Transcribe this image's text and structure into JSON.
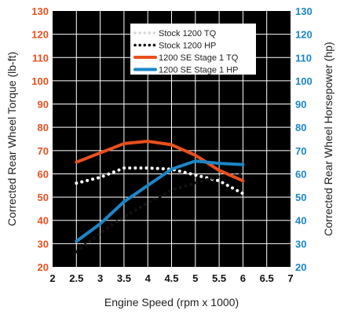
{
  "chart_data": {
    "type": "line",
    "xlabel": "Engine Speed (rpm x 1000)",
    "ylabel_left": "Corrected Rear Wheel Torque (lb-ft)",
    "ylabel_right": "Corrected Rear Wheel Horsepower (hp)",
    "xlim": [
      2,
      7
    ],
    "ylim": [
      20,
      130
    ],
    "x_ticks": [
      "2",
      "2.5",
      "3",
      "3.5",
      "4",
      "4.5",
      "5",
      "5.5",
      "6",
      "6.5",
      "7"
    ],
    "y_ticks": [
      "20",
      "30",
      "40",
      "50",
      "60",
      "70",
      "80",
      "90",
      "100",
      "110",
      "120",
      "130"
    ],
    "grid": true,
    "legend_position": "top-right",
    "colors": {
      "left_axis_ticks": "#e8501c",
      "right_axis_ticks": "#1b86c8"
    },
    "series": [
      {
        "name": "Stock 1200 TQ",
        "color": "#ffffff",
        "style": "dotted",
        "axis": "left",
        "x": [
          2.5,
          3,
          3.5,
          4,
          4.5,
          5,
          5.5,
          6
        ],
        "y": [
          56,
          58.5,
          62.5,
          62.5,
          62,
          59.5,
          57,
          51.5
        ]
      },
      {
        "name": "Stock 1200 HP",
        "color": "#111111",
        "style": "dotted",
        "axis": "right",
        "x": [
          2.5,
          3,
          3.5,
          4,
          4.5,
          5,
          5.5,
          6
        ],
        "y": [
          26.5,
          34.5,
          41.5,
          47.5,
          53,
          56,
          59,
          59.5
        ]
      },
      {
        "name": "1200 SE Stage 1 TQ",
        "color": "#e8501c",
        "style": "solid",
        "axis": "left",
        "x": [
          2.5,
          3,
          3.5,
          4,
          4.5,
          5,
          5.5,
          6
        ],
        "y": [
          65,
          69,
          73,
          74,
          72.5,
          68,
          61.5,
          57
        ]
      },
      {
        "name": "1200 SE Stage 1 HP",
        "color": "#1b86c8",
        "style": "solid",
        "axis": "right",
        "x": [
          2.5,
          3,
          3.5,
          4,
          4.5,
          5,
          5.5,
          6
        ],
        "y": [
          31,
          38.5,
          48,
          55,
          62,
          65.5,
          64.5,
          64
        ]
      }
    ]
  }
}
